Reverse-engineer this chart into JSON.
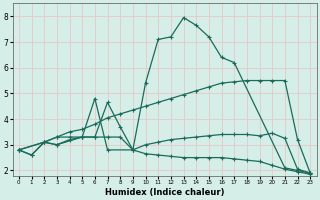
{
  "xlabel": "Humidex (Indice chaleur)",
  "xlim": [
    -0.5,
    23.5
  ],
  "ylim": [
    1.8,
    8.5
  ],
  "xticks": [
    0,
    1,
    2,
    3,
    4,
    5,
    6,
    7,
    8,
    9,
    10,
    11,
    12,
    13,
    14,
    15,
    16,
    17,
    18,
    19,
    20,
    21,
    22,
    23
  ],
  "yticks": [
    2,
    3,
    4,
    5,
    6,
    7,
    8
  ],
  "background_color": "#d5eee8",
  "grid_color": "#e8c8c8",
  "line_color": "#1a6b5a",
  "lines": [
    {
      "x": [
        0,
        1,
        2,
        3,
        5,
        6,
        7,
        9,
        10,
        11,
        12,
        13,
        14,
        15,
        16,
        17,
        21,
        22,
        23
      ],
      "y": [
        2.8,
        2.6,
        3.1,
        3.0,
        3.3,
        4.8,
        2.8,
        2.8,
        5.4,
        7.1,
        7.2,
        7.95,
        7.65,
        7.2,
        6.4,
        6.2,
        2.1,
        2.0,
        1.9
      ]
    },
    {
      "x": [
        0,
        2,
        3,
        4,
        5,
        6,
        7,
        8,
        9,
        10,
        11,
        12,
        13,
        14,
        15,
        16,
        17,
        18,
        19,
        20,
        21,
        22,
        23
      ],
      "y": [
        2.8,
        3.1,
        3.3,
        3.5,
        3.6,
        3.8,
        4.05,
        4.2,
        4.35,
        4.5,
        4.65,
        4.8,
        4.95,
        5.1,
        5.25,
        5.4,
        5.45,
        5.5,
        5.5,
        5.5,
        5.5,
        3.2,
        1.9
      ]
    },
    {
      "x": [
        0,
        2,
        3,
        4,
        5,
        6,
        7,
        8,
        9,
        10,
        11,
        12,
        13,
        14,
        15,
        16,
        17,
        18,
        19,
        20,
        21,
        22,
        23
      ],
      "y": [
        2.8,
        3.1,
        3.3,
        3.3,
        3.3,
        3.3,
        4.65,
        3.7,
        2.8,
        3.0,
        3.1,
        3.2,
        3.25,
        3.3,
        3.35,
        3.4,
        3.4,
        3.4,
        3.35,
        3.45,
        3.25,
        2.05,
        1.9
      ]
    },
    {
      "x": [
        0,
        1,
        2,
        3,
        4,
        5,
        6,
        7,
        8,
        9,
        10,
        11,
        12,
        13,
        14,
        15,
        16,
        17,
        18,
        19,
        20,
        21,
        22,
        23
      ],
      "y": [
        2.8,
        2.6,
        3.1,
        3.0,
        3.2,
        3.3,
        3.3,
        3.3,
        3.3,
        2.8,
        2.65,
        2.6,
        2.55,
        2.5,
        2.5,
        2.5,
        2.5,
        2.45,
        2.4,
        2.35,
        2.2,
        2.05,
        1.95,
        1.85
      ]
    }
  ]
}
